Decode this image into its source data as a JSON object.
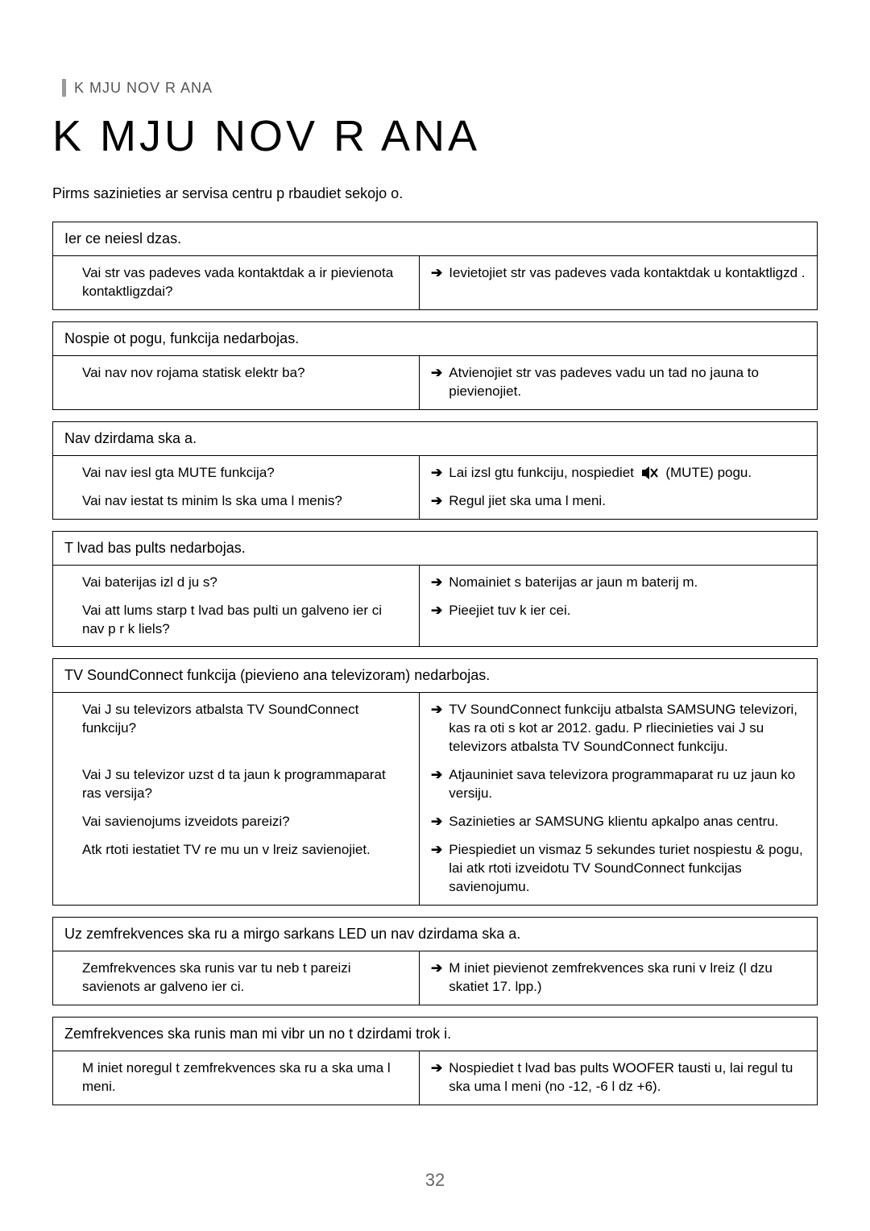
{
  "header": {
    "small_label": "K   MJU NOV  R  ANA",
    "main_title": "K     MJU NOV   R   ANA",
    "intro": "Pirms sazinieties ar servisa centru p  rbaudiet sekojo o."
  },
  "page_number": "32",
  "sections": [
    {
      "title": "Ier ce neiesl dzas.",
      "rows": [
        {
          "left": "Vai str  vas padeves vada kontaktdak a ir pievienota kontaktligzdai?",
          "right": "Ievietojiet str  vas padeves vada kontaktdak u kontaktligzd  ."
        }
      ]
    },
    {
      "title": "Nospie ot pogu, funkcija nedarbojas.",
      "rows": [
        {
          "left": "Vai nav nov  rojama statisk   elektr ba?",
          "right": "Atvienojiet str  vas padeves vadu un tad no jauna to pievienojiet."
        }
      ]
    },
    {
      "title": "Nav dzirdama ska a.",
      "rows": [
        {
          "left": "Vai nav iesl  gta MUTE  funkcija?",
          "right_prefix": "Lai izsl  gtu funkciju, nospiediet",
          "right_suffix": "(MUTE) pogu.",
          "has_icon": true
        },
        {
          "left": "Vai nav iestat ts minim  ls ska uma l menis?",
          "right": "Regul  jiet ska uma l meni."
        }
      ]
    },
    {
      "title": "T lvad bas pults nedarbojas.",
      "rows": [
        {
          "left": "Vai baterijas izl d ju   s?",
          "right": "Nomainiet   s baterijas ar jaun  m baterij  m."
        },
        {
          "left": "Vai att  lums starp t  lvad bas pulti un galveno ier ci nav p  r  k liels?",
          "right": "Pieejiet tuv  k ier cei."
        }
      ]
    },
    {
      "title": "TV SoundConnect  funkcija (pievieno ana televizoram) nedarbojas.",
      "rows": [
        {
          "left": "Vai J  su televizors atbalsta  TV SoundConnect funkciju?",
          "right": "TV SoundConnect  funkciju atbalsta SAMSUNG televizori, kas ra  oti s  kot ar 2012. gadu. P  rliecinieties vai J  su televizors atbalsta  TV SoundConnect  funkciju."
        },
        {
          "left": "Vai J  su televizor   uzst  d ta jaun  k   programmaparat  ras versija?",
          "right": "Atjauniniet sava televizora programmaparat  ru uz jaun  ko versiju."
        },
        {
          "left": "Vai savienojums izveidots pareizi?",
          "right": "Sazinieties ar SAMSUNG klientu apkalpo anas centru."
        },
        {
          "left": "Atk  rtoti iestatiet TV re  mu un v  lreiz savienojiet.",
          "right": "Piespiediet un vismaz 5 sekundes turiet nospiestu &  pogu, lai atk  rtoti izveidotu  TV SoundConnect funkcijas savienojumu."
        }
      ]
    },
    {
      "title": "Uz zemfrekvences ska ru a mirgo sarkans LED un nav dzirdama ska a.",
      "rows": [
        {
          "left": "Zemfrekvences ska runis var  tu neb  t pareizi savienots ar galveno ier ci.",
          "right": "M    iniet pievienot zemfrekvences ska runi v  lreiz (l  dzu skatiet 17. lpp.)"
        }
      ]
    },
    {
      "title": "Zemfrekvences ska runis man mi vibr   un no t   dzirdami trok  i.",
      "rows": [
        {
          "left": "M    iniet noregul  t zemfrekvences ska ru a ska uma l meni.",
          "right": "Nospiediet t  lvad bas pults WOOFER tausti  u, lai regul  tu ska uma l meni (no -12, -6  l dz +6)."
        }
      ]
    }
  ]
}
